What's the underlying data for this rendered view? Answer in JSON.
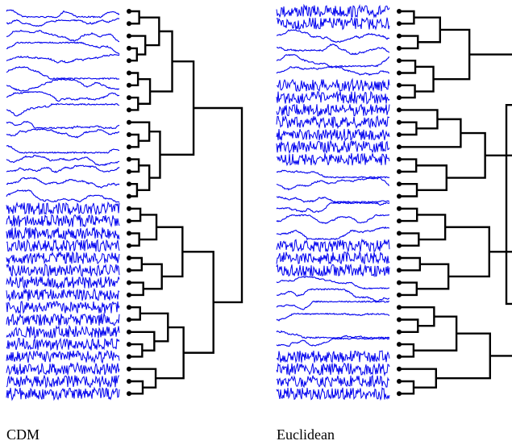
{
  "panels": [
    {
      "label": "CDM"
    },
    {
      "label": "Euclidean"
    }
  ]
}
